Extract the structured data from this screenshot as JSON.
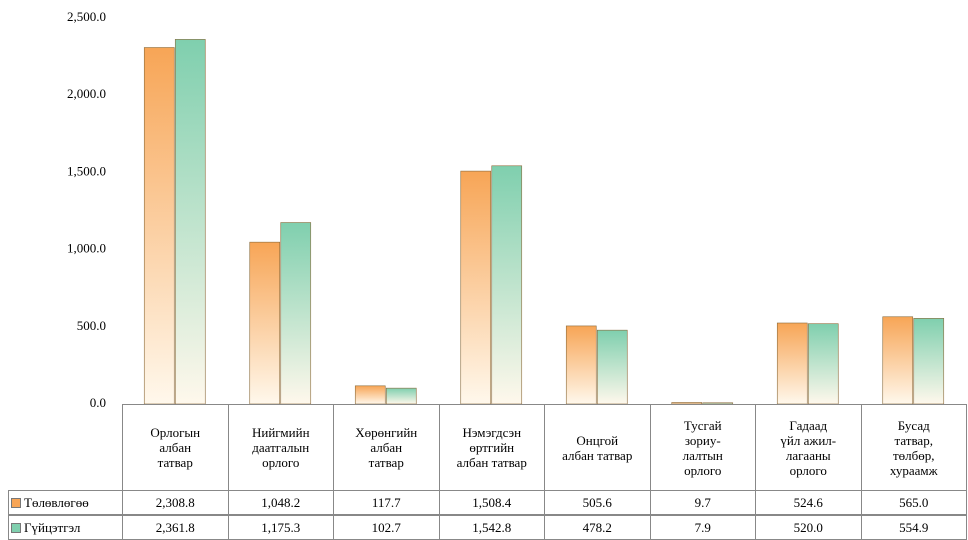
{
  "chart_data": {
    "type": "bar",
    "categories": [
      "Орлогын\nалбан\nтатвар",
      "Нийгмийн\nдаатгалын\nорлого",
      "Хөрөнгийн\nалбан\nтатвар",
      "Нэмэгдсэн\nөртгийн\nалбан татвар",
      "Онцгой\nалбан татвар",
      "Тусгай\nзориу-\nлалтын\nорлого",
      "Гадаад\nүйл ажил-\nлагааны\nорлого",
      "Бусад\nтатвар,\nтөлбөр,\nхураамж"
    ],
    "series": [
      {
        "name": "Төлөвлөгөө",
        "color": "#f7a556",
        "values": [
          2308.8,
          1048.2,
          117.7,
          1508.4,
          505.6,
          9.7,
          524.6,
          565.0
        ],
        "value_labels": [
          "2,308.8",
          "1,048.2",
          "117.7",
          "1,508.4",
          "505.6",
          "9.7",
          "524.6",
          "565.0"
        ]
      },
      {
        "name": "Гүйцэтгэл",
        "color": "#7fcfae",
        "values": [
          2361.8,
          1175.3,
          102.7,
          1542.8,
          478.2,
          7.9,
          520.0,
          554.9
        ],
        "value_labels": [
          "2,361.8",
          "1,175.3",
          "102.7",
          "1,542.8",
          "478.2",
          "7.9",
          "520.0",
          "554.9"
        ]
      }
    ],
    "ylim": [
      0,
      2500
    ],
    "yticks": [
      {
        "value": 0,
        "label": "0.0"
      },
      {
        "value": 500,
        "label": "500.0"
      },
      {
        "value": 1000,
        "label": "1,000.0"
      },
      {
        "value": 1500,
        "label": "1,500.0"
      },
      {
        "value": 2000,
        "label": "2,000.0"
      },
      {
        "value": 2500,
        "label": "2,500.0"
      }
    ],
    "grid": false
  }
}
